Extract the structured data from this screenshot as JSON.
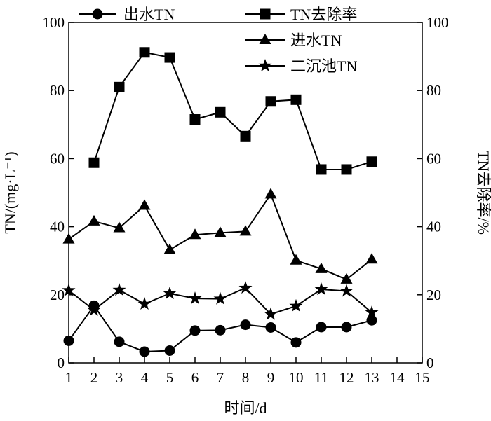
{
  "chart_data": {
    "type": "line",
    "title": "",
    "xlabel": "时间/d",
    "ylabel_left": "TN/(mg·L⁻¹)",
    "ylabel_right": "TN去除率/%",
    "xlim": [
      1,
      15
    ],
    "ylim_left": [
      0,
      100
    ],
    "ylim_right": [
      0,
      100
    ],
    "x_ticks": [
      1,
      2,
      3,
      4,
      5,
      6,
      7,
      8,
      9,
      10,
      11,
      12,
      13,
      14,
      15
    ],
    "y_ticks_left": [
      0,
      20,
      40,
      60,
      80,
      100
    ],
    "y_ticks_right": [
      0,
      20,
      40,
      60,
      80,
      100
    ],
    "grid": false,
    "legend_placement": "top",
    "series": [
      {
        "name": "出水TN",
        "marker": "circle",
        "axis": "left",
        "x": [
          1,
          2,
          3,
          4,
          5,
          6,
          7,
          8,
          9,
          10,
          11,
          12,
          13
        ],
        "values": [
          6.5,
          16.8,
          6.2,
          3.3,
          3.6,
          9.5,
          9.6,
          11.2,
          10.4,
          6.0,
          10.5,
          10.5,
          12.5
        ]
      },
      {
        "name": "TN去除率",
        "marker": "square",
        "axis": "right",
        "x": [
          2,
          3,
          4,
          5,
          6,
          7,
          8,
          9,
          10,
          11,
          12,
          13
        ],
        "values": [
          58.8,
          81.0,
          91.2,
          89.7,
          71.5,
          73.6,
          66.6,
          76.8,
          77.3,
          56.8,
          56.8,
          59.1
        ]
      },
      {
        "name": "进水TN",
        "marker": "triangle",
        "axis": "left",
        "x": [
          1,
          2,
          3,
          4,
          5,
          6,
          7,
          8,
          9,
          10,
          11,
          12,
          13
        ],
        "values": [
          36.3,
          41.6,
          39.6,
          46.2,
          33.2,
          37.6,
          38.2,
          38.6,
          49.5,
          30.1,
          27.6,
          24.5,
          30.4
        ]
      },
      {
        "name": "二沉池TN",
        "marker": "star",
        "axis": "left",
        "x": [
          1,
          2,
          3,
          4,
          5,
          6,
          7,
          8,
          9,
          10,
          11,
          12,
          13
        ],
        "values": [
          21.3,
          15.5,
          21.4,
          17.3,
          20.4,
          18.9,
          18.8,
          22.0,
          14.3,
          16.7,
          21.6,
          21.1,
          14.8
        ]
      }
    ]
  }
}
